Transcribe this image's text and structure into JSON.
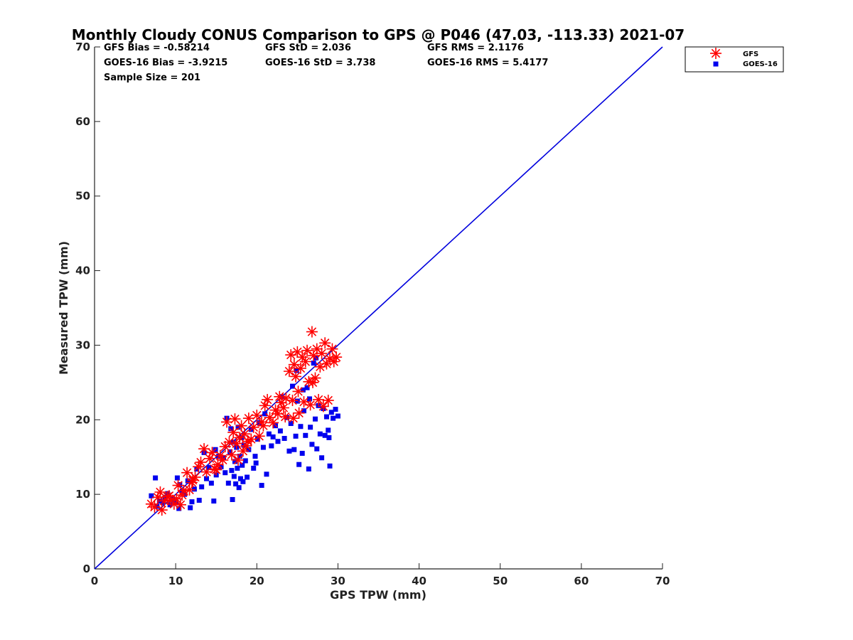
{
  "chart_data": {
    "type": "scatter",
    "title": "Monthly Cloudy CONUS Comparison to GPS @ P046 (47.03, -113.33) 2021-07",
    "xlabel": "GPS TPW (mm)",
    "ylabel": "Measured TPW (mm)",
    "xlim": [
      0,
      70
    ],
    "ylim": [
      0,
      70
    ],
    "xticks": [
      0,
      10,
      20,
      30,
      40,
      50,
      60,
      70
    ],
    "yticks": [
      0,
      10,
      20,
      30,
      40,
      50,
      60,
      70
    ],
    "grid": false,
    "legend_position": "top-right",
    "stats": {
      "gfs_bias": "GFS Bias = -0.58214",
      "gfs_std": "GFS StD = 2.036",
      "gfs_rms": "GFS RMS = 2.1176",
      "goes_bias": "GOES-16 Bias = -3.9215",
      "goes_std": "GOES-16 StD = 3.738",
      "goes_rms": "GOES-16 RMS = 5.4177",
      "sample_size": "Sample Size = 201"
    },
    "reference_line": {
      "x": [
        0,
        70
      ],
      "y": [
        0,
        70
      ],
      "color": "#0000dd"
    },
    "series": [
      {
        "name": "GFS",
        "marker": "asterisk",
        "color": "#ff0000",
        "points": [
          [
            7.0,
            8.7
          ],
          [
            7.4,
            8.3
          ],
          [
            7.8,
            9.6
          ],
          [
            8.1,
            10.3
          ],
          [
            8.3,
            7.9
          ],
          [
            8.6,
            9.1
          ],
          [
            9.0,
            9.7
          ],
          [
            9.4,
            9.2
          ],
          [
            9.8,
            8.7
          ],
          [
            10.1,
            9.4
          ],
          [
            10.3,
            11.2
          ],
          [
            10.6,
            8.6
          ],
          [
            10.8,
            9.9
          ],
          [
            11.0,
            10.5
          ],
          [
            11.4,
            12.9
          ],
          [
            11.7,
            10.6
          ],
          [
            12.0,
            11.6
          ],
          [
            12.4,
            12.3
          ],
          [
            12.8,
            13.7
          ],
          [
            13.1,
            14.3
          ],
          [
            13.5,
            16.1
          ],
          [
            13.8,
            13.0
          ],
          [
            14.2,
            14.8
          ],
          [
            14.5,
            15.6
          ],
          [
            14.8,
            13.4
          ],
          [
            15.2,
            14.0
          ],
          [
            15.5,
            15.2
          ],
          [
            15.8,
            14.6
          ],
          [
            16.1,
            16.4
          ],
          [
            16.3,
            19.7
          ],
          [
            16.6,
            17.0
          ],
          [
            16.9,
            15.3
          ],
          [
            17.1,
            18.3
          ],
          [
            17.3,
            20.1
          ],
          [
            17.5,
            16.8
          ],
          [
            17.7,
            14.6
          ],
          [
            17.9,
            17.6
          ],
          [
            18.1,
            19.2
          ],
          [
            18.3,
            15.8
          ],
          [
            18.5,
            18.1
          ],
          [
            18.7,
            16.5
          ],
          [
            19.0,
            20.2
          ],
          [
            19.3,
            17.4
          ],
          [
            19.6,
            19.0
          ],
          [
            20.0,
            20.6
          ],
          [
            20.3,
            17.8
          ],
          [
            20.6,
            19.7
          ],
          [
            21.0,
            21.9
          ],
          [
            21.3,
            22.7
          ],
          [
            21.6,
            20.3
          ],
          [
            22.0,
            19.6
          ],
          [
            22.3,
            21.3
          ],
          [
            22.6,
            20.8
          ],
          [
            23.0,
            22.3
          ],
          [
            23.3,
            21.6
          ],
          [
            23.6,
            22.9
          ],
          [
            24.0,
            26.5
          ],
          [
            24.2,
            28.7
          ],
          [
            24.4,
            22.6
          ],
          [
            24.6,
            27.4
          ],
          [
            24.8,
            25.8
          ],
          [
            25.0,
            29.1
          ],
          [
            25.2,
            20.9
          ],
          [
            25.4,
            26.9
          ],
          [
            25.6,
            28.4
          ],
          [
            25.8,
            22.4
          ],
          [
            26.0,
            27.8
          ],
          [
            26.2,
            29.3
          ],
          [
            26.4,
            25.1
          ],
          [
            26.6,
            22.0
          ],
          [
            26.8,
            31.8
          ],
          [
            27.0,
            28.6
          ],
          [
            27.2,
            25.6
          ],
          [
            27.4,
            29.5
          ],
          [
            27.6,
            22.7
          ],
          [
            27.8,
            27.1
          ],
          [
            28.0,
            28.9
          ],
          [
            28.2,
            21.8
          ],
          [
            28.4,
            30.3
          ],
          [
            28.6,
            27.5
          ],
          [
            28.8,
            22.6
          ],
          [
            29.0,
            28.2
          ],
          [
            29.3,
            29.5
          ],
          [
            29.5,
            27.8
          ],
          [
            29.8,
            28.4
          ],
          [
            23.5,
            20.4
          ],
          [
            15.0,
            13.3
          ],
          [
            12.1,
            11.9
          ],
          [
            9.2,
            9.8
          ],
          [
            18.9,
            17.1
          ],
          [
            22.8,
            23.1
          ],
          [
            24.5,
            20.2
          ],
          [
            26.9,
            25.0
          ],
          [
            25.1,
            23.8
          ],
          [
            20.8,
            19.2
          ]
        ]
      },
      {
        "name": "GOES-16",
        "marker": "square",
        "color": "#0000ee",
        "points": [
          [
            7.0,
            9.8
          ],
          [
            7.5,
            12.2
          ],
          [
            7.7,
            8.4
          ],
          [
            8.0,
            9.1
          ],
          [
            8.4,
            8.9
          ],
          [
            8.7,
            9.6
          ],
          [
            9.0,
            10.1
          ],
          [
            9.3,
            8.6
          ],
          [
            9.6,
            9.3
          ],
          [
            10.0,
            9.0
          ],
          [
            10.2,
            12.2
          ],
          [
            10.5,
            11.3
          ],
          [
            10.8,
            10.4
          ],
          [
            11.1,
            10.0
          ],
          [
            11.5,
            11.8
          ],
          [
            11.8,
            8.2
          ],
          [
            12.0,
            9.0
          ],
          [
            12.3,
            10.7
          ],
          [
            12.6,
            13.4
          ],
          [
            12.9,
            9.2
          ],
          [
            13.2,
            11.0
          ],
          [
            13.5,
            15.6
          ],
          [
            13.8,
            12.1
          ],
          [
            14.1,
            13.6
          ],
          [
            14.4,
            11.5
          ],
          [
            14.7,
            9.1
          ],
          [
            15.0,
            12.6
          ],
          [
            15.3,
            15.1
          ],
          [
            15.6,
            13.7
          ],
          [
            15.9,
            14.9
          ],
          [
            16.1,
            12.9
          ],
          [
            16.3,
            20.2
          ],
          [
            16.5,
            11.5
          ],
          [
            16.7,
            15.7
          ],
          [
            16.9,
            13.2
          ],
          [
            17.0,
            9.3
          ],
          [
            17.1,
            17.0
          ],
          [
            17.2,
            12.4
          ],
          [
            17.3,
            14.4
          ],
          [
            17.4,
            11.4
          ],
          [
            17.5,
            16.3
          ],
          [
            17.6,
            13.5
          ],
          [
            17.7,
            19.0
          ],
          [
            17.8,
            10.9
          ],
          [
            17.9,
            15.1
          ],
          [
            18.0,
            12.1
          ],
          [
            18.1,
            17.6
          ],
          [
            18.2,
            13.9
          ],
          [
            18.3,
            11.7
          ],
          [
            18.4,
            16.6
          ],
          [
            18.6,
            14.5
          ],
          [
            18.8,
            12.3
          ],
          [
            19.0,
            16.0
          ],
          [
            19.3,
            18.7
          ],
          [
            19.6,
            13.5
          ],
          [
            19.9,
            14.2
          ],
          [
            20.1,
            17.4
          ],
          [
            20.3,
            19.6
          ],
          [
            20.6,
            11.2
          ],
          [
            20.8,
            16.3
          ],
          [
            21.0,
            20.8
          ],
          [
            21.2,
            12.7
          ],
          [
            21.5,
            18.1
          ],
          [
            21.8,
            16.5
          ],
          [
            22.0,
            17.7
          ],
          [
            22.3,
            19.2
          ],
          [
            22.6,
            17.1
          ],
          [
            22.9,
            18.5
          ],
          [
            23.1,
            23.1
          ],
          [
            23.4,
            17.5
          ],
          [
            23.7,
            20.3
          ],
          [
            24.0,
            15.8
          ],
          [
            24.2,
            19.5
          ],
          [
            24.4,
            24.5
          ],
          [
            24.6,
            16.0
          ],
          [
            24.8,
            17.8
          ],
          [
            25.0,
            22.5
          ],
          [
            25.2,
            14.0
          ],
          [
            25.4,
            19.1
          ],
          [
            25.6,
            15.5
          ],
          [
            25.8,
            21.2
          ],
          [
            26.0,
            17.9
          ],
          [
            26.2,
            24.3
          ],
          [
            26.4,
            13.4
          ],
          [
            26.6,
            19.0
          ],
          [
            26.8,
            16.7
          ],
          [
            27.0,
            27.6
          ],
          [
            27.2,
            20.1
          ],
          [
            27.4,
            16.1
          ],
          [
            27.6,
            21.9
          ],
          [
            27.8,
            18.1
          ],
          [
            28.0,
            14.9
          ],
          [
            28.2,
            21.5
          ],
          [
            28.4,
            17.9
          ],
          [
            28.6,
            20.4
          ],
          [
            28.8,
            18.6
          ],
          [
            29.0,
            13.8
          ],
          [
            29.2,
            21.0
          ],
          [
            29.4,
            20.2
          ],
          [
            29.7,
            21.4
          ],
          [
            30.0,
            20.5
          ],
          [
            24.9,
            26.6
          ],
          [
            26.5,
            22.8
          ],
          [
            27.3,
            28.3
          ],
          [
            28.9,
            17.6
          ],
          [
            10.4,
            8.1
          ],
          [
            14.9,
            16.0
          ],
          [
            16.8,
            18.8
          ],
          [
            19.8,
            15.1
          ],
          [
            25.7,
            24.0
          ]
        ]
      }
    ]
  }
}
